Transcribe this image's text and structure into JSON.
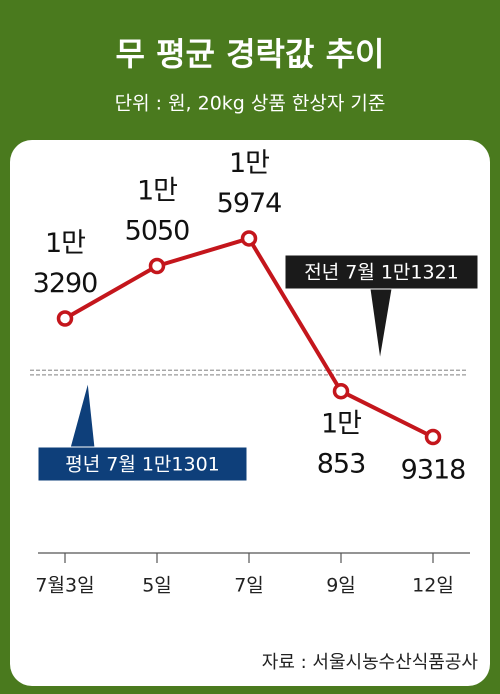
{
  "chart_data": {
    "type": "line",
    "title": "무 평균 경락값 추이",
    "subtitle": "단위 : 원, 20kg 상품 한상자 기준",
    "source": "자료 : 서울시농수산식품공사",
    "categories": [
      "7월3일",
      "5일",
      "7일",
      "9일",
      "12일"
    ],
    "series": [
      {
        "color": "#c4161c",
        "values": [
          13290,
          15050,
          15974,
          10853,
          9318
        ],
        "value_labels": [
          [
            "1만",
            "3290"
          ],
          [
            "1만",
            "5050"
          ],
          [
            "1만",
            "5974"
          ],
          [
            "1만",
            "853"
          ],
          [
            "9318"
          ]
        ]
      }
    ],
    "reference_lines": [
      {
        "label": "전년 7월 1만1321",
        "value": 11321
      },
      {
        "label": "평년 7월 1만1301",
        "value": 11301
      }
    ],
    "ylim": [
      6000,
      18000
    ]
  }
}
